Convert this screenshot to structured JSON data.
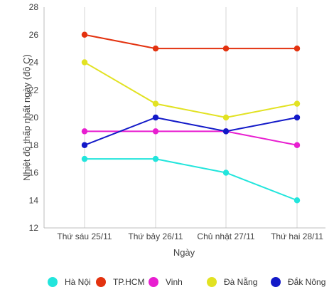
{
  "chart_data": {
    "type": "line",
    "title": "",
    "xlabel": "Ngày",
    "ylabel": "Nhiệt độ thấp nhất ngày (độ C)",
    "categories": [
      "Thứ sáu 25/11",
      "Thứ bảy 26/11",
      "Chủ nhật 27/11",
      "Thứ hai 28/11"
    ],
    "ylim": [
      12,
      28
    ],
    "yticks": [
      12,
      14,
      16,
      18,
      20,
      22,
      24,
      26,
      28
    ],
    "grid": "vertical",
    "legend_position": "bottom",
    "series": [
      {
        "name": "Hà Nội",
        "color": "#22e5dc",
        "values": [
          17,
          17,
          16,
          14
        ]
      },
      {
        "name": "TP.HCM",
        "color": "#e3320f",
        "values": [
          26,
          25,
          25,
          25
        ]
      },
      {
        "name": "Vinh",
        "color": "#e81ed0",
        "values": [
          19,
          19,
          19,
          18
        ]
      },
      {
        "name": "Đà Nẵng",
        "color": "#e2e222",
        "values": [
          24,
          21,
          20,
          21
        ]
      },
      {
        "name": "Đắk Nông",
        "color": "#1219c8",
        "values": [
          18,
          20,
          19,
          20
        ]
      }
    ]
  }
}
